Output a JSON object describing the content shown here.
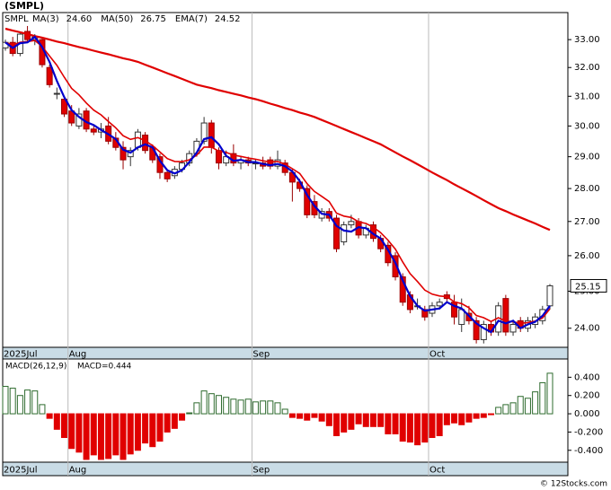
{
  "chart_data": [
    {
      "type": "candlestick",
      "title": "(SMPL)",
      "symbol": "SMPL",
      "log_scale": true,
      "categories": [
        "2025Jul",
        null,
        null,
        null,
        null,
        null,
        null,
        null,
        null,
        "Aug",
        null,
        null,
        null,
        null,
        null,
        null,
        null,
        null,
        null,
        null,
        null,
        null,
        null,
        null,
        null,
        null,
        null,
        null,
        null,
        null,
        null,
        null,
        null,
        null,
        "Sep",
        null,
        null,
        null,
        null,
        null,
        null,
        null,
        null,
        null,
        null,
        null,
        null,
        null,
        null,
        null,
        null,
        null,
        null,
        null,
        null,
        null,
        null,
        null,
        "Oct",
        null,
        null,
        null,
        null,
        null,
        null,
        null,
        null,
        null,
        null,
        null,
        null,
        null,
        null,
        null,
        null
      ],
      "open": [
        32.7,
        32.9,
        32.5,
        33.3,
        33.0,
        33.0,
        32.0,
        31.1,
        30.9,
        30.5,
        30.0,
        30.5,
        29.9,
        29.8,
        30.0,
        29.6,
        29.3,
        29.0,
        29.3,
        29.7,
        29.3,
        29.0,
        28.5,
        28.4,
        28.6,
        28.8,
        29.1,
        29.5,
        30.1,
        29.2,
        28.8,
        29.1,
        28.8,
        28.9,
        28.8,
        28.8,
        28.9,
        28.7,
        28.8,
        28.5,
        28.2,
        28.0,
        27.6,
        27.1,
        27.3,
        27.1,
        26.4,
        26.9,
        27.0,
        26.6,
        26.9,
        26.5,
        26.3,
        26.0,
        25.4,
        24.9,
        24.6,
        24.5,
        24.4,
        24.6,
        24.9,
        24.7,
        24.1,
        24.4,
        24.2,
        23.7,
        24.1,
        23.9,
        24.8,
        23.9,
        24.2,
        24.0,
        24.1,
        24.2,
        24.6
      ],
      "high": [
        33.0,
        33.1,
        33.3,
        33.5,
        33.2,
        33.1,
        32.1,
        31.3,
        31.0,
        30.7,
        30.6,
        30.6,
        30.0,
        30.1,
        30.3,
        29.8,
        29.5,
        29.3,
        29.9,
        29.8,
        29.4,
        29.1,
        28.6,
        28.7,
        28.9,
        29.2,
        29.6,
        30.3,
        30.2,
        29.3,
        29.2,
        29.4,
        29.0,
        29.0,
        28.9,
        29.0,
        29.0,
        29.2,
        28.9,
        28.6,
        28.3,
        28.1,
        27.8,
        27.4,
        27.4,
        27.2,
        27.0,
        27.2,
        27.1,
        26.9,
        27.0,
        26.6,
        26.4,
        26.1,
        25.5,
        25.0,
        24.8,
        24.6,
        24.7,
        24.8,
        25.0,
        24.9,
        24.8,
        24.6,
        24.3,
        24.2,
        24.2,
        24.7,
        24.9,
        24.2,
        24.3,
        24.3,
        24.4,
        24.6,
        25.2
      ],
      "low": [
        32.6,
        32.4,
        32.4,
        32.9,
        32.8,
        32.0,
        31.3,
        30.9,
        30.3,
        30.0,
        29.9,
        29.8,
        29.7,
        29.6,
        29.4,
        29.2,
        28.6,
        28.7,
        29.2,
        29.1,
        28.8,
        28.3,
        28.2,
        28.3,
        28.5,
        28.7,
        29.0,
        29.4,
        29.1,
        28.6,
        28.7,
        28.7,
        28.6,
        28.7,
        28.6,
        28.6,
        28.6,
        28.6,
        28.4,
        27.6,
        27.9,
        27.1,
        27.1,
        27.0,
        27.0,
        26.1,
        26.3,
        26.8,
        26.5,
        26.5,
        26.4,
        26.1,
        25.7,
        25.3,
        24.6,
        24.4,
        24.5,
        24.2,
        24.3,
        24.5,
        24.7,
        24.1,
        23.9,
        24.1,
        23.6,
        23.6,
        23.8,
        23.8,
        23.8,
        23.8,
        23.9,
        23.9,
        24.0,
        24.1,
        24.5
      ],
      "close": [
        32.9,
        32.5,
        33.2,
        33.0,
        33.1,
        32.1,
        31.4,
        31.1,
        30.4,
        30.1,
        30.4,
        29.9,
        29.8,
        29.9,
        29.5,
        29.3,
        28.9,
        29.2,
        29.8,
        29.2,
        28.9,
        28.5,
        28.3,
        28.6,
        28.8,
        29.1,
        29.5,
        30.1,
        29.3,
        28.8,
        29.0,
        28.8,
        28.9,
        28.8,
        28.8,
        28.7,
        28.7,
        28.9,
        28.5,
        28.2,
        28.0,
        27.2,
        27.2,
        27.3,
        27.1,
        26.2,
        26.9,
        27.0,
        26.6,
        26.8,
        26.5,
        26.2,
        25.8,
        25.4,
        24.7,
        24.5,
        24.6,
        24.3,
        24.6,
        24.7,
        24.8,
        24.3,
        24.5,
        24.2,
        23.7,
        24.1,
        23.9,
        24.6,
        23.9,
        24.1,
        24.0,
        24.2,
        24.3,
        24.5,
        25.15
      ],
      "up_color": "#ffffff",
      "down_color": "#e00000",
      "lines": [
        {
          "name": "MA(3)",
          "color": "#0000cc",
          "last_label": "24.60",
          "values": [
            32.9,
            32.7,
            32.87,
            32.9,
            33.1,
            32.73,
            32.2,
            31.53,
            30.97,
            30.53,
            30.3,
            30.13,
            30.03,
            29.87,
            29.73,
            29.57,
            29.23,
            29.13,
            29.3,
            29.4,
            29.3,
            28.87,
            28.57,
            28.47,
            28.57,
            28.83,
            29.13,
            29.57,
            29.63,
            29.4,
            29.03,
            28.87,
            28.9,
            28.83,
            28.83,
            28.77,
            28.73,
            28.77,
            28.7,
            28.53,
            28.23,
            27.8,
            27.47,
            27.23,
            27.2,
            26.87,
            26.73,
            26.7,
            26.83,
            26.8,
            26.63,
            26.5,
            26.17,
            25.8,
            25.3,
            24.87,
            24.6,
            24.47,
            24.5,
            24.53,
            24.7,
            24.6,
            24.53,
            24.33,
            24.13,
            24.0,
            23.9,
            24.2,
            24.13,
            24.2,
            24.0,
            24.1,
            24.17,
            24.33,
            24.6
          ]
        },
        {
          "name": "MA(50)",
          "color": "#e00000",
          "last_label": "26.75",
          "values": [
            33.4,
            33.33,
            33.27,
            33.2,
            33.13,
            33.07,
            33.0,
            32.93,
            32.87,
            32.8,
            32.73,
            32.67,
            32.6,
            32.53,
            32.47,
            32.4,
            32.33,
            32.27,
            32.2,
            32.1,
            32.0,
            31.9,
            31.8,
            31.7,
            31.6,
            31.5,
            31.4,
            31.34,
            31.28,
            31.21,
            31.15,
            31.09,
            31.03,
            30.96,
            30.9,
            30.83,
            30.75,
            30.68,
            30.6,
            30.53,
            30.45,
            30.38,
            30.3,
            30.2,
            30.1,
            30.0,
            29.9,
            29.8,
            29.7,
            29.6,
            29.5,
            29.4,
            29.27,
            29.14,
            29.01,
            28.89,
            28.76,
            28.63,
            28.5,
            28.38,
            28.26,
            28.13,
            28.01,
            27.89,
            27.77,
            27.64,
            27.52,
            27.4,
            27.31,
            27.21,
            27.12,
            27.03,
            26.94,
            26.84,
            26.75
          ]
        },
        {
          "name": "EMA(7)",
          "color": "#e00000",
          "last_label": "24.52",
          "values": [
            32.9,
            32.8,
            32.9,
            32.93,
            32.97,
            32.75,
            32.41,
            32.08,
            31.66,
            31.27,
            31.05,
            30.77,
            30.53,
            30.37,
            30.15,
            29.94,
            29.68,
            29.56,
            29.62,
            29.52,
            29.36,
            29.15,
            28.94,
            28.85,
            28.84,
            28.9,
            29.05,
            29.31,
            29.31,
            29.18,
            29.14,
            29.05,
            29.01,
            28.96,
            28.92,
            28.87,
            28.83,
            28.85,
            28.76,
            28.62,
            28.47,
            28.15,
            27.91,
            27.76,
            27.6,
            27.25,
            27.16,
            27.12,
            26.99,
            26.94,
            26.83,
            26.67,
            26.45,
            26.19,
            25.82,
            25.49,
            25.27,
            25.03,
            24.92,
            24.87,
            24.85,
            24.71,
            24.66,
            24.55,
            24.34,
            24.28,
            24.18,
            24.28,
            24.19,
            24.17,
            24.13,
            24.15,
            24.19,
            24.27,
            24.52
          ]
        }
      ],
      "ylim": [
        23.5,
        34.0
      ],
      "yticks": [
        {
          "value": 24,
          "label": "24.00"
        },
        {
          "value": 25,
          "label": "25.00"
        },
        {
          "value": 26,
          "label": "26.00"
        },
        {
          "value": 27,
          "label": "27.00"
        },
        {
          "value": 28,
          "label": "28.00"
        },
        {
          "value": 29,
          "label": "29.00"
        },
        {
          "value": 30,
          "label": "30.00"
        },
        {
          "value": 31,
          "label": "31.00"
        },
        {
          "value": 32,
          "label": "32.00"
        },
        {
          "value": 33,
          "label": "33.00"
        }
      ]
    },
    {
      "type": "bar",
      "title": "MACD(26,12,9)",
      "readout": "MACD=0.444",
      "categories": [
        "2025Jul",
        null,
        null,
        null,
        null,
        null,
        null,
        null,
        null,
        "Aug",
        null,
        null,
        null,
        null,
        null,
        null,
        null,
        null,
        null,
        null,
        null,
        null,
        null,
        null,
        null,
        null,
        null,
        null,
        null,
        null,
        null,
        null,
        null,
        null,
        "Sep",
        null,
        null,
        null,
        null,
        null,
        null,
        null,
        null,
        null,
        null,
        null,
        null,
        null,
        null,
        null,
        null,
        null,
        null,
        null,
        null,
        null,
        null,
        null,
        "Oct",
        null,
        null,
        null,
        null,
        null,
        null,
        null,
        null,
        null,
        null,
        null,
        null,
        null,
        null,
        null,
        null
      ],
      "values": [
        0.3,
        0.28,
        0.2,
        0.26,
        0.25,
        0.1,
        -0.05,
        -0.17,
        -0.26,
        -0.38,
        -0.42,
        -0.5,
        -0.45,
        -0.5,
        -0.49,
        -0.45,
        -0.5,
        -0.44,
        -0.4,
        -0.32,
        -0.36,
        -0.3,
        -0.2,
        -0.16,
        -0.07,
        0.01,
        0.12,
        0.25,
        0.22,
        0.2,
        0.18,
        0.16,
        0.15,
        0.16,
        0.13,
        0.14,
        0.14,
        0.12,
        0.05,
        -0.04,
        -0.05,
        -0.07,
        -0.04,
        -0.08,
        -0.13,
        -0.24,
        -0.2,
        -0.17,
        -0.11,
        -0.14,
        -0.14,
        -0.14,
        -0.22,
        -0.22,
        -0.3,
        -0.31,
        -0.34,
        -0.31,
        -0.26,
        -0.24,
        -0.12,
        -0.1,
        -0.12,
        -0.09,
        -0.05,
        -0.04,
        -0.01,
        0.07,
        0.1,
        0.12,
        0.19,
        0.17,
        0.24,
        0.34,
        0.444
      ],
      "pos_color": "#2e6b2e",
      "neg_color": "#e00000",
      "ylim": [
        -0.53,
        0.6
      ],
      "yticks": [
        {
          "value": -0.4,
          "label": "-0.400"
        },
        {
          "value": -0.2,
          "label": "-0.200"
        },
        {
          "value": 0,
          "label": "0.000"
        },
        {
          "value": 0.2,
          "label": "0.200"
        },
        {
          "value": 0.4,
          "label": "0.400"
        }
      ]
    }
  ],
  "footer": "© 12Stocks.com"
}
